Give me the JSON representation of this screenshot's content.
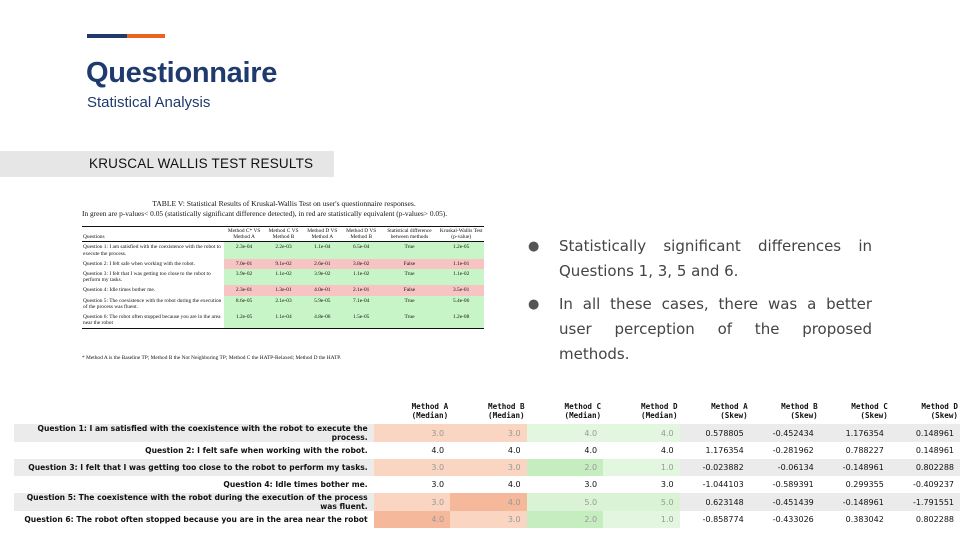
{
  "header": {
    "title": "Questionnaire",
    "subtitle": "Statistical Analysis"
  },
  "section_label": "KRUSCAL WALLIS TEST RESULTS",
  "colors": {
    "title_blue": "#1f3a6e",
    "accent_orange": "#e8641f",
    "sig_green": "#c8f5c8",
    "equiv_red": "#f7c3c3"
  },
  "paper_table": {
    "caption": "TABLE V: Statistical Results of Kruskal-Wallis Test on user's questionnaire responses.",
    "subcaption": "In green are p-values< 0.05 (statistically significant difference detected), in red are statistically equivalent (p-values> 0.05).",
    "headers": [
      "Questions",
      "Method C* VS Method A",
      "Method C VS Method B",
      "Method D VS Method A",
      "Method D VS Method B",
      "Statistical difference between methods",
      "Kruskal-Wallis Test (p-value)"
    ],
    "rows": [
      {
        "q": "Question 1: I am satisfied with the coexistence with the robot to execute the process.",
        "v": [
          "2.3e-04",
          "2.2e-03",
          "1.1e-04",
          "6.5e-04",
          "True",
          "1.2e-05"
        ],
        "c": "g"
      },
      {
        "q": "Question 2: I felt safe when working with the robot.",
        "v": [
          "7.0e-01",
          "9.1e-02",
          "2.6e-01",
          "3.8e-02",
          "False",
          "1.1e-01"
        ],
        "c": "r"
      },
      {
        "q": "Question 3: I felt that I was getting too close to the robot to perform my tasks.",
        "v": [
          "3.9e-02",
          "1.1e-02",
          "3.9e-02",
          "1.1e-02",
          "True",
          "1.1e-02"
        ],
        "c": "g"
      },
      {
        "q": "Question 4: Idle times bother me.",
        "v": [
          "2.3e-01",
          "1.3e-01",
          "4.0e-01",
          "2.1e-01",
          "False",
          "3.5e-01"
        ],
        "c": "r"
      },
      {
        "q": "Question 5: The coexistence with the robot during the execution of the process was fluent.",
        "v": [
          "8.6e-05",
          "2.1e-03",
          "5.9e-05",
          "7.1e-04",
          "True",
          "5.4e-06"
        ],
        "c": "g"
      },
      {
        "q": "Question 6: The robot often stopped because you are in the area near the robot",
        "v": [
          "1.2e-05",
          "1.1e-04",
          "4.8e-06",
          "1.5e-05",
          "True",
          "1.2e-08"
        ],
        "c": "g"
      }
    ],
    "footnote": "* Method A is the Baseline TP; Method B the Not Neighboring TP; Method C the HATP-Relaxed; Method D the HATP."
  },
  "bullets": [
    "Statistically significant differences in Questions 1, 3, 5 and 6.",
    "In all these cases, there was a better user perception of the proposed methods."
  ],
  "df_table": {
    "columns": [
      "Method A (Median)",
      "Method B (Median)",
      "Method C (Median)",
      "Method D (Median)",
      "Method A (Skew)",
      "Method B (Skew)",
      "Method C (Skew)",
      "Method D (Skew)"
    ],
    "rows": [
      {
        "label": "Question 1: I am satisfied with the coexistence with the robot to execute the process.",
        "values": [
          "3.0",
          "3.0",
          "4.0",
          "4.0",
          "0.578805",
          "-0.452434",
          "1.176354",
          "0.148961"
        ],
        "bg": [
          "#f9d5c2",
          "#f9d5c2",
          "#e3f6df",
          "#e3f6df",
          "",
          "",
          "",
          ""
        ],
        "heat": true
      },
      {
        "label": "Question 2: I felt safe when working with the robot.",
        "values": [
          "4.0",
          "4.0",
          "4.0",
          "4.0",
          "1.176354",
          "-0.281962",
          "0.788227",
          "0.148961"
        ],
        "bg": [
          "",
          "",
          "",
          "",
          "",
          "",
          "",
          ""
        ],
        "heat": false
      },
      {
        "label": "Question 3: I felt that I was getting too close to the robot to perform my tasks.",
        "values": [
          "3.0",
          "3.0",
          "2.0",
          "1.0",
          "-0.023882",
          "-0.06134",
          "-0.148961",
          "0.802288"
        ],
        "bg": [
          "#f9d5c2",
          "#f9d5c2",
          "#c6edc0",
          "#e3f6df",
          "",
          "",
          "",
          ""
        ],
        "heat": true
      },
      {
        "label": "Question 4: Idle times bother me.",
        "values": [
          "3.0",
          "4.0",
          "3.0",
          "3.0",
          "-1.044103",
          "-0.589391",
          "0.299355",
          "-0.409237"
        ],
        "bg": [
          "",
          "",
          "",
          "",
          "",
          "",
          "",
          ""
        ],
        "heat": false
      },
      {
        "label": "Question 5: The coexistence with the robot during the execution of the process was fluent.",
        "values": [
          "3.0",
          "4.0",
          "5.0",
          "5.0",
          "0.623148",
          "-0.451439",
          "-0.148961",
          "-1.791551"
        ],
        "bg": [
          "#f9d5c2",
          "#f6b89a",
          "#daf3d5",
          "#daf3d5",
          "",
          "",
          "",
          ""
        ],
        "heat": true
      },
      {
        "label": "Question 6: The robot often stopped because you are in the area near the robot",
        "values": [
          "4.0",
          "3.0",
          "2.0",
          "1.0",
          "-0.858774",
          "-0.433026",
          "0.383042",
          "0.802288"
        ],
        "bg": [
          "#f6b89a",
          "#f9d5c2",
          "#c6edc0",
          "#e3f6df",
          "",
          "",
          "",
          ""
        ],
        "heat": true
      }
    ]
  }
}
